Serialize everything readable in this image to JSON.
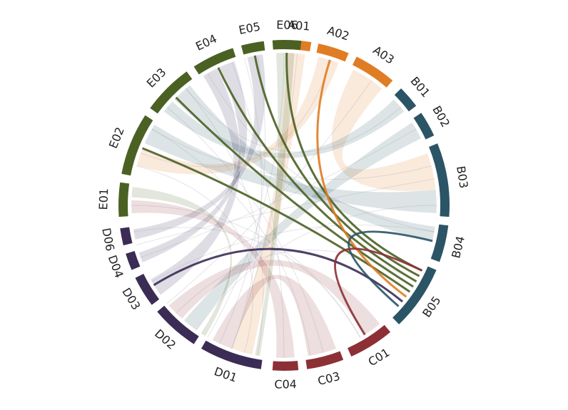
{
  "segments": [
    {
      "id": "A01",
      "color": "#e07c24"
    },
    {
      "id": "A02",
      "color": "#e07c24"
    },
    {
      "id": "A03",
      "color": "#e07c24"
    },
    {
      "id": "B01",
      "color": "#2b5466"
    },
    {
      "id": "B02",
      "color": "#2b5466"
    },
    {
      "id": "B03",
      "color": "#2b5466"
    },
    {
      "id": "B04",
      "color": "#2b5466"
    },
    {
      "id": "B05",
      "color": "#2b5466"
    },
    {
      "id": "C01",
      "color": "#8c3035"
    },
    {
      "id": "C03",
      "color": "#8c3035"
    },
    {
      "id": "C04",
      "color": "#8c3035"
    },
    {
      "id": "D01",
      "color": "#3b2c55"
    },
    {
      "id": "D02",
      "color": "#3b2c55"
    },
    {
      "id": "D03",
      "color": "#3b2c55"
    },
    {
      "id": "D04",
      "color": "#3b2c55"
    },
    {
      "id": "D06",
      "color": "#3b2c55"
    },
    {
      "id": "E01",
      "color": "#4a6123"
    },
    {
      "id": "E02",
      "color": "#4a6123"
    },
    {
      "id": "E03",
      "color": "#4a6123"
    },
    {
      "id": "E04",
      "color": "#4a6123"
    },
    {
      "id": "E05",
      "color": "#4a6123"
    },
    {
      "id": "E06",
      "color": "#4a6123"
    }
  ],
  "links": [
    {
      "source": "E06",
      "target": "B05",
      "highlight": true
    },
    {
      "source": "E05",
      "target": "B05",
      "highlight": true
    },
    {
      "source": "E04",
      "target": "B05",
      "highlight": true
    },
    {
      "source": "E03",
      "target": "B05",
      "highlight": true
    },
    {
      "source": "E02",
      "target": "B05",
      "highlight": true
    },
    {
      "source": "A02",
      "target": "B05",
      "highlight": true
    },
    {
      "source": "D03",
      "target": "B05",
      "highlight": true
    },
    {
      "source": "B04",
      "target": "B05",
      "highlight": true
    },
    {
      "source": "C01",
      "target": "B05",
      "highlight": true
    },
    {
      "source": "A01",
      "target": "D01",
      "highlight": false
    },
    {
      "source": "A02",
      "target": "E02",
      "highlight": false
    },
    {
      "source": "A03",
      "target": "B03",
      "highlight": false
    },
    {
      "source": "B03",
      "target": "E02",
      "highlight": false
    },
    {
      "source": "B04",
      "target": "E03",
      "highlight": false
    },
    {
      "source": "C01",
      "target": "D02",
      "highlight": false
    },
    {
      "source": "C04",
      "target": "D01",
      "highlight": false
    },
    {
      "source": "D01",
      "target": "E01",
      "highlight": false
    },
    {
      "source": "D02",
      "target": "E04",
      "highlight": false
    },
    {
      "source": "E01",
      "target": "D02",
      "highlight": false
    },
    {
      "source": "E05",
      "target": "E04",
      "highlight": false
    }
  ]
}
